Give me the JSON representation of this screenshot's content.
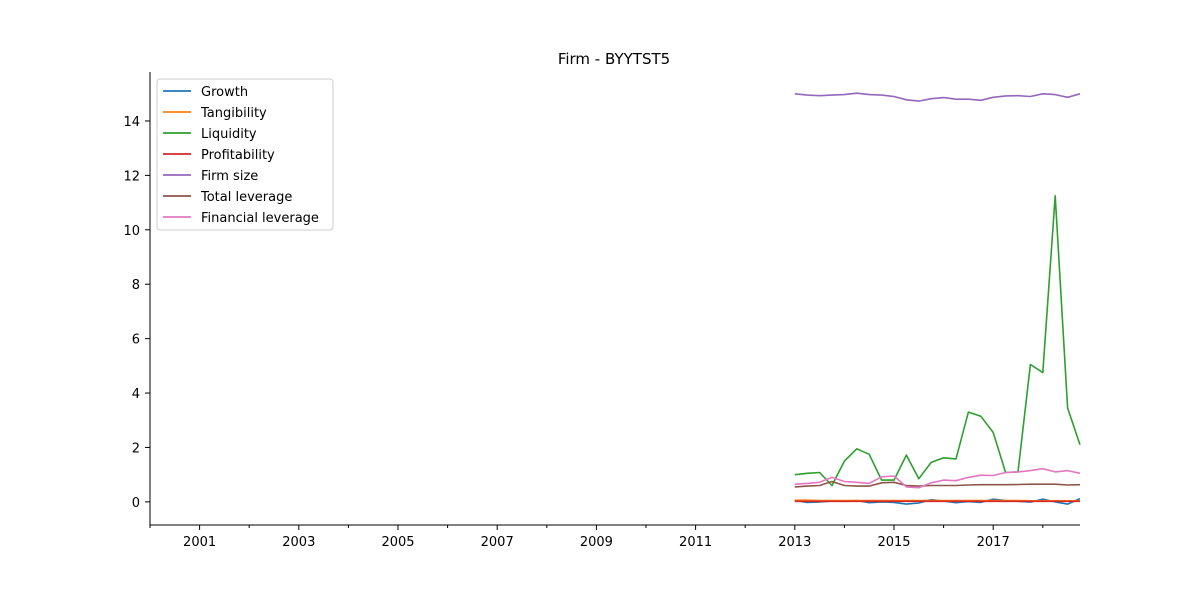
{
  "chart_data": {
    "type": "line",
    "title": "Firm - BYYTST5",
    "xlabel": "",
    "ylabel": "",
    "xlim": [
      2000.0,
      2018.75
    ],
    "ylim": [
      -0.85,
      15.8
    ],
    "x_ticks": [
      2001,
      2003,
      2005,
      2007,
      2009,
      2011,
      2013,
      2015,
      2017
    ],
    "x_tick_labels": [
      "2001",
      "2003",
      "2005",
      "2007",
      "2009",
      "2011",
      "2013",
      "2015",
      "2017"
    ],
    "y_ticks": [
      0,
      2,
      4,
      6,
      8,
      10,
      12,
      14
    ],
    "y_tick_labels": [
      "0",
      "2",
      "4",
      "6",
      "8",
      "10",
      "12",
      "14"
    ],
    "grid": false,
    "legend_position": "top-left",
    "x": [
      2013.0,
      2013.25,
      2013.5,
      2013.75,
      2014.0,
      2014.25,
      2014.5,
      2014.75,
      2015.0,
      2015.25,
      2015.5,
      2015.75,
      2016.0,
      2016.25,
      2016.5,
      2016.75,
      2017.0,
      2017.25,
      2017.5,
      2017.75,
      2018.0,
      2018.25,
      2018.5,
      2018.75
    ],
    "series": [
      {
        "name": "Growth",
        "color": "#1f77b4",
        "values": [
          0.05,
          -0.02,
          0.0,
          0.03,
          0.02,
          0.05,
          -0.03,
          0.0,
          -0.02,
          -0.08,
          -0.04,
          0.08,
          0.03,
          -0.03,
          0.01,
          -0.02,
          0.1,
          0.05,
          0.02,
          -0.01,
          0.1,
          0.0,
          -0.08,
          0.12
        ]
      },
      {
        "name": "Tangibility",
        "color": "#ff7f0e",
        "values": [
          0.06,
          0.06,
          0.05,
          0.05,
          0.05,
          0.05,
          0.05,
          0.05,
          0.05,
          0.05,
          0.05,
          0.05,
          0.05,
          0.05,
          0.05,
          0.05,
          0.05,
          0.05,
          0.05,
          0.04,
          0.04,
          0.04,
          0.04,
          0.04
        ]
      },
      {
        "name": "Liquidity",
        "color": "#2ca02c",
        "values": [
          1.0,
          1.05,
          1.08,
          0.6,
          1.5,
          1.95,
          1.75,
          0.8,
          0.8,
          1.72,
          0.85,
          1.45,
          1.62,
          1.58,
          3.3,
          3.15,
          2.55,
          1.08,
          1.1,
          5.05,
          4.75,
          11.25,
          3.45,
          2.1
        ]
      },
      {
        "name": "Profitability",
        "color": "#d62728",
        "values": [
          0.02,
          0.02,
          0.02,
          0.02,
          0.02,
          0.02,
          0.02,
          0.02,
          0.02,
          0.02,
          0.02,
          0.02,
          0.02,
          0.02,
          0.02,
          0.02,
          0.02,
          0.02,
          0.02,
          0.02,
          0.02,
          0.02,
          0.02,
          0.02
        ]
      },
      {
        "name": "Firm size",
        "color": "#9467bd",
        "values": [
          15.0,
          14.95,
          14.93,
          14.95,
          14.97,
          15.02,
          14.97,
          14.95,
          14.9,
          14.78,
          14.73,
          14.82,
          14.86,
          14.8,
          14.8,
          14.76,
          14.87,
          14.92,
          14.93,
          14.9,
          15.0,
          14.97,
          14.87,
          15.0
        ]
      },
      {
        "name": "Total leverage",
        "color": "#8c564b",
        "values": [
          0.55,
          0.58,
          0.6,
          0.75,
          0.6,
          0.58,
          0.58,
          0.7,
          0.72,
          0.6,
          0.58,
          0.6,
          0.6,
          0.6,
          0.62,
          0.63,
          0.63,
          0.63,
          0.64,
          0.65,
          0.65,
          0.65,
          0.62,
          0.63
        ]
      },
      {
        "name": "Financial leverage",
        "color": "#e377c2",
        "values": [
          0.65,
          0.68,
          0.72,
          0.9,
          0.75,
          0.72,
          0.68,
          0.92,
          0.95,
          0.55,
          0.52,
          0.7,
          0.8,
          0.78,
          0.9,
          0.98,
          0.97,
          1.08,
          1.1,
          1.15,
          1.22,
          1.1,
          1.15,
          1.05
        ]
      }
    ]
  }
}
